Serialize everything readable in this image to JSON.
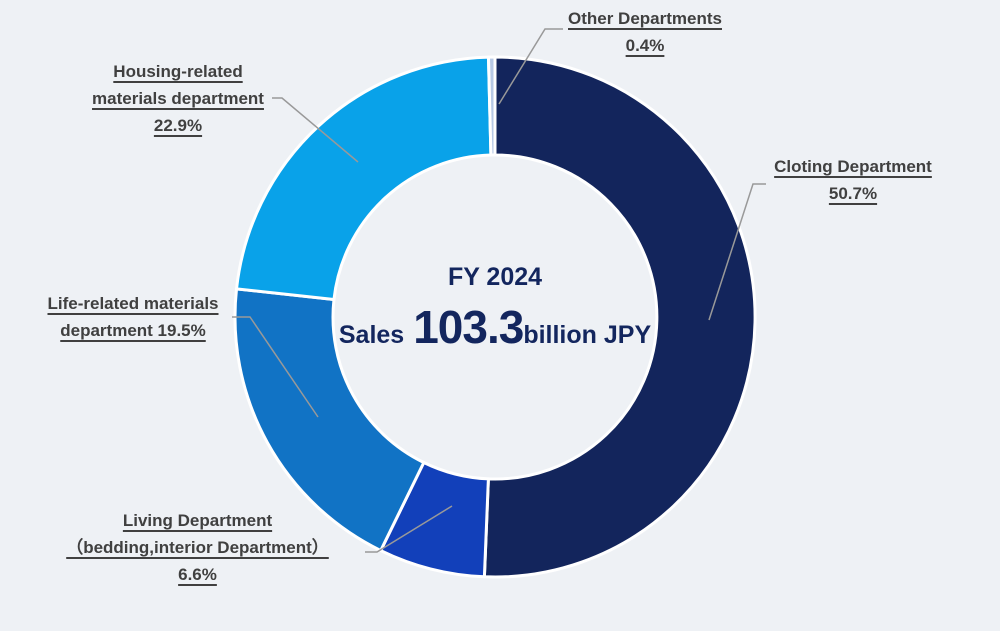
{
  "chart_data": {
    "type": "pie",
    "subtype": "donut",
    "title": "FY 2024",
    "center_text": {
      "fiscal_year": "FY 2024",
      "sales_prefix": "Sales",
      "sales_value": "103.3",
      "sales_suffix": "billion JPY"
    },
    "unit": "%",
    "direction": "clockwise",
    "start_angle_deg": 0,
    "legend": "none",
    "data_labels": "outside with leader lines",
    "segments": [
      {
        "label": "Cloting Department",
        "value": 50.7,
        "color": "#13255C"
      },
      {
        "label": "Living Department（bedding,interior Department）",
        "value": 6.6,
        "color": "#1240BA"
      },
      {
        "label": "Life-related materials department",
        "value": 19.5,
        "color": "#1173C5"
      },
      {
        "label": "Housing-related materials department",
        "value": 22.9,
        "color": "#09A2E9"
      },
      {
        "label": "Other Departments",
        "value": 0.4,
        "color": "#B7C9E5"
      }
    ]
  },
  "labels": {
    "other": {
      "line1": "Other Departments",
      "line2": "0.4%"
    },
    "clothing": {
      "line1": "Cloting Department",
      "line2": "50.7%"
    },
    "housing": {
      "line1": "Housing-related",
      "line2": "materials department",
      "line3": "22.9%"
    },
    "life": {
      "line1": "Life-related materials",
      "line2": "department 19.5%"
    },
    "living": {
      "line1": "Living Department",
      "line2": "（bedding,interior Department）",
      "line3": "6.6%"
    }
  },
  "center": {
    "fiscal_year": "FY 2024",
    "sales_prefix": "Sales",
    "sales_value": "103.3",
    "sales_suffix": "billion JPY"
  },
  "colors": {
    "background": "#EEF1F5",
    "label_text": "#404040",
    "leader_line": "#999999",
    "center_text": "#13265E",
    "segment_gap": "#FFFFFF"
  }
}
